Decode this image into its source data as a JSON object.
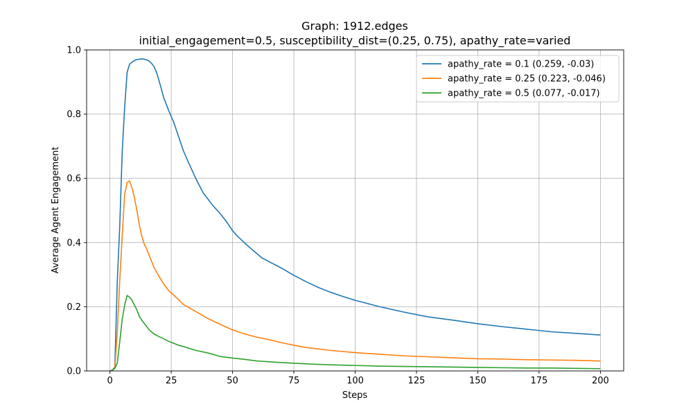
{
  "chart_data": {
    "type": "line",
    "title": "Graph: 1912.edges",
    "subtitle": "initial_engagement=0.5, susceptibility_dist=(0.25, 0.75), apathy_rate=varied",
    "xlabel": "Steps",
    "ylabel": "Average Agent Engagement",
    "xlim": [
      -9.5,
      209.5
    ],
    "ylim": [
      0.0,
      1.0
    ],
    "xticks": [
      0,
      25,
      50,
      75,
      100,
      125,
      150,
      175,
      200
    ],
    "yticks": [
      0.0,
      0.2,
      0.4,
      0.6,
      0.8,
      1.0
    ],
    "xtick_labels": [
      "0",
      "25",
      "50",
      "75",
      "100",
      "125",
      "150",
      "175",
      "200"
    ],
    "ytick_labels": [
      "0.0",
      "0.2",
      "0.4",
      "0.6",
      "0.8",
      "1.0"
    ],
    "grid": true,
    "legend_position": "top-right",
    "series": [
      {
        "name": "apathy_rate = 0.1 (0.259, -0.03)",
        "color": "#1f77b4",
        "x": [
          0,
          1,
          2,
          3,
          4,
          5,
          6,
          7,
          8,
          9,
          10,
          11,
          12,
          13,
          14,
          15,
          16,
          17,
          18,
          19,
          20,
          22,
          24,
          26,
          28,
          30,
          32,
          35,
          38,
          40,
          42,
          45,
          48,
          50,
          52,
          55,
          58,
          60,
          62,
          65,
          68,
          70,
          75,
          80,
          85,
          90,
          95,
          100,
          110,
          120,
          130,
          140,
          150,
          160,
          170,
          180,
          190,
          200
        ],
        "y": [
          0.0,
          0.003,
          0.012,
          0.28,
          0.45,
          0.68,
          0.82,
          0.93,
          0.955,
          0.962,
          0.967,
          0.97,
          0.971,
          0.972,
          0.971,
          0.969,
          0.965,
          0.958,
          0.948,
          0.93,
          0.905,
          0.85,
          0.81,
          0.775,
          0.73,
          0.685,
          0.65,
          0.6,
          0.555,
          0.535,
          0.515,
          0.49,
          0.46,
          0.437,
          0.42,
          0.398,
          0.378,
          0.365,
          0.352,
          0.34,
          0.328,
          0.32,
          0.298,
          0.278,
          0.26,
          0.245,
          0.232,
          0.22,
          0.2,
          0.183,
          0.168,
          0.158,
          0.147,
          0.138,
          0.13,
          0.122,
          0.117,
          0.112
        ]
      },
      {
        "name": "apathy_rate = 0.25 (0.223, -0.046)",
        "color": "#ff7f0e",
        "x": [
          0,
          1,
          2,
          3,
          4,
          5,
          6,
          7,
          8,
          9,
          10,
          11,
          12,
          13,
          14,
          15,
          16,
          18,
          20,
          22,
          24,
          26,
          28,
          30,
          35,
          40,
          45,
          50,
          55,
          60,
          65,
          70,
          75,
          80,
          90,
          100,
          110,
          120,
          130,
          140,
          150,
          160,
          170,
          180,
          190,
          200
        ],
        "y": [
          0.0,
          0.002,
          0.01,
          0.12,
          0.28,
          0.42,
          0.55,
          0.587,
          0.592,
          0.57,
          0.54,
          0.5,
          0.455,
          0.42,
          0.395,
          0.38,
          0.36,
          0.322,
          0.295,
          0.27,
          0.25,
          0.236,
          0.222,
          0.207,
          0.185,
          0.163,
          0.145,
          0.128,
          0.115,
          0.105,
          0.097,
          0.088,
          0.08,
          0.073,
          0.064,
          0.057,
          0.052,
          0.047,
          0.044,
          0.041,
          0.038,
          0.037,
          0.035,
          0.034,
          0.033,
          0.031
        ]
      },
      {
        "name": "apathy_rate = 0.5 (0.077, -0.017)",
        "color": "#2ca02c",
        "x": [
          0,
          1,
          2,
          3,
          4,
          5,
          6,
          7,
          8,
          9,
          10,
          11,
          12,
          13,
          14,
          15,
          16,
          18,
          20,
          22,
          24,
          26,
          28,
          30,
          35,
          40,
          45,
          50,
          55,
          60,
          70,
          80,
          90,
          100,
          110,
          120,
          130,
          140,
          150,
          160,
          170,
          180,
          190,
          200
        ],
        "y": [
          0.0,
          0.002,
          0.008,
          0.025,
          0.09,
          0.16,
          0.205,
          0.235,
          0.23,
          0.22,
          0.205,
          0.19,
          0.17,
          0.158,
          0.148,
          0.138,
          0.128,
          0.115,
          0.107,
          0.1,
          0.092,
          0.086,
          0.08,
          0.076,
          0.064,
          0.056,
          0.045,
          0.04,
          0.036,
          0.031,
          0.026,
          0.022,
          0.019,
          0.017,
          0.015,
          0.014,
          0.013,
          0.012,
          0.011,
          0.01,
          0.009,
          0.009,
          0.008,
          0.007
        ]
      }
    ]
  }
}
